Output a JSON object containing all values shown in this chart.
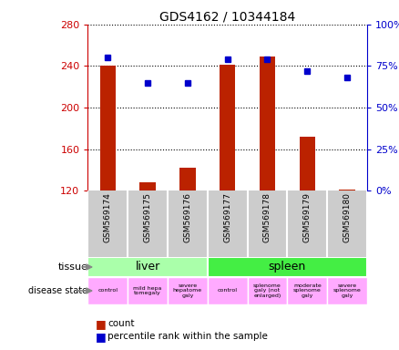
{
  "title": "GDS4162 / 10344184",
  "samples": [
    "GSM569174",
    "GSM569175",
    "GSM569176",
    "GSM569177",
    "GSM569178",
    "GSM569179",
    "GSM569180"
  ],
  "counts": [
    240,
    128,
    142,
    241,
    249,
    172,
    121
  ],
  "percentile_ranks": [
    80,
    65,
    65,
    79,
    79,
    72,
    68
  ],
  "ylim_left": [
    120,
    280
  ],
  "ylim_right": [
    0,
    100
  ],
  "yticks_left": [
    120,
    160,
    200,
    240,
    280
  ],
  "yticks_right": [
    0,
    25,
    50,
    75,
    100
  ],
  "bar_color": "#bb2200",
  "dot_color": "#0000cc",
  "tissue_liver_color": "#aaffaa",
  "tissue_spleen_color": "#44ee44",
  "tissue_liver_label": "liver",
  "tissue_spleen_label": "spleen",
  "disease_color": "#ffaaff",
  "disease_labels": [
    "control",
    "mild hepa\ntomegaly",
    "severe\nhepatome\ngaly",
    "control",
    "splenome\ngaly (not\nenlarged)",
    "moderate\nsplenome\ngaly",
    "severe\nsplenome\ngaly"
  ],
  "sample_bg_color": "#cccccc",
  "grid_color": "#000000",
  "background_color": "#ffffff",
  "left_axis_color": "#cc0000",
  "right_axis_color": "#0000cc",
  "legend_count_label": "count",
  "legend_pct_label": "percentile rank within the sample"
}
